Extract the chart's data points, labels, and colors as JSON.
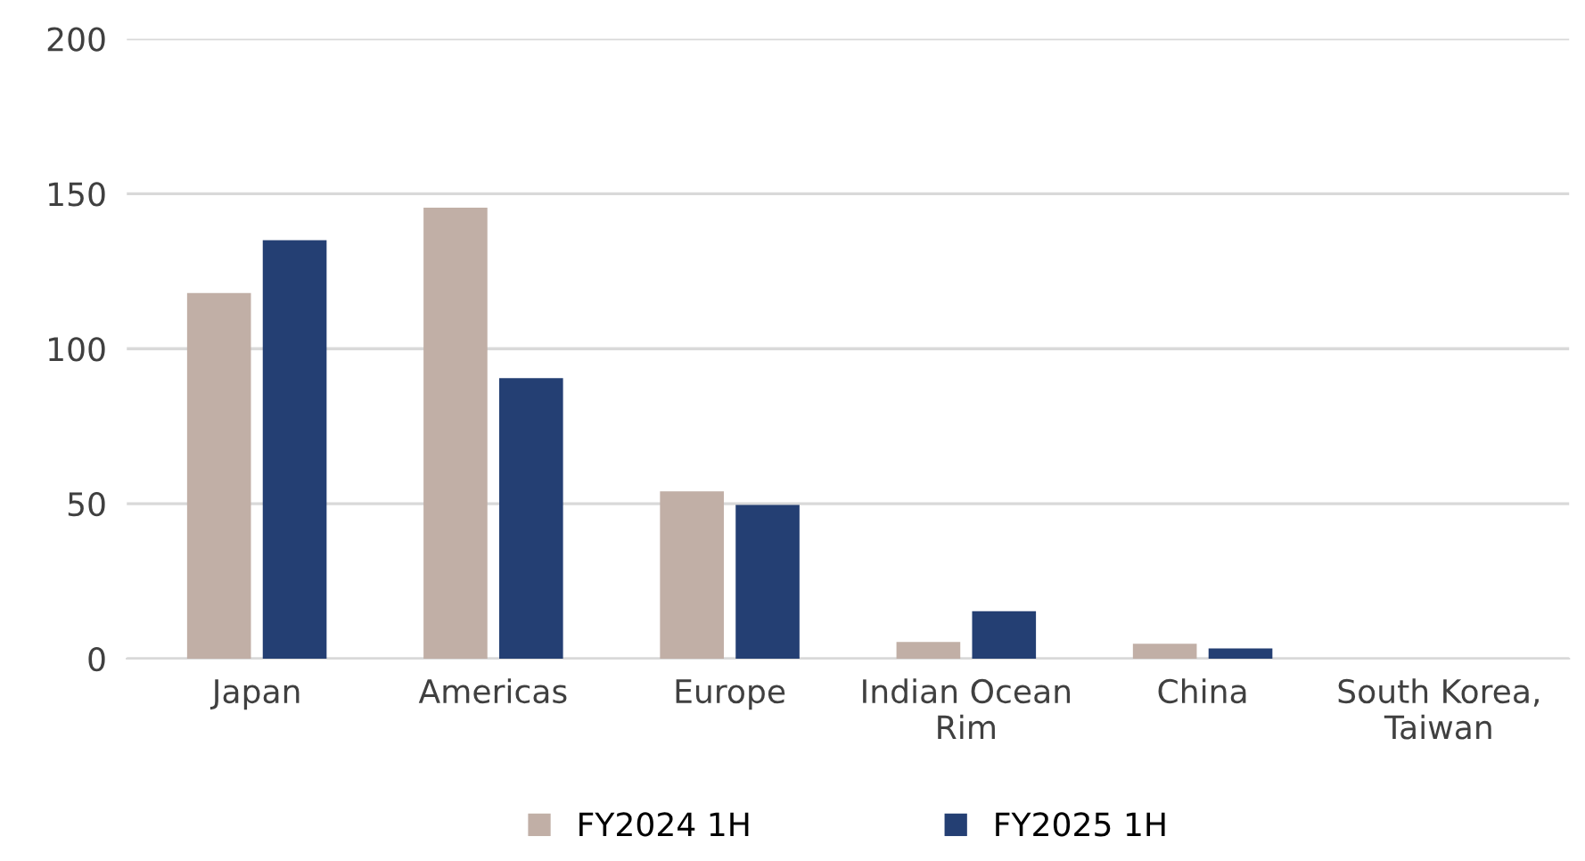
{
  "chart_data": {
    "type": "bar",
    "categories": [
      "Japan",
      "Americas",
      "Europe",
      "Indian Ocean\nRim",
      "China",
      "South Korea,\nTaiwan"
    ],
    "series": [
      {
        "name": "FY2024 1H",
        "color": "#c1afa6",
        "values": [
          118,
          145.5,
          54,
          5.4,
          4.8,
          0
        ]
      },
      {
        "name": "FY2025 1H",
        "color": "#243f73",
        "values": [
          135,
          90.5,
          49.6,
          15.3,
          3.3,
          0
        ]
      }
    ],
    "ylim": [
      0,
      200
    ],
    "yticks": [
      0,
      50,
      100,
      150,
      200
    ],
    "grid": "y",
    "legend": "bottom"
  }
}
